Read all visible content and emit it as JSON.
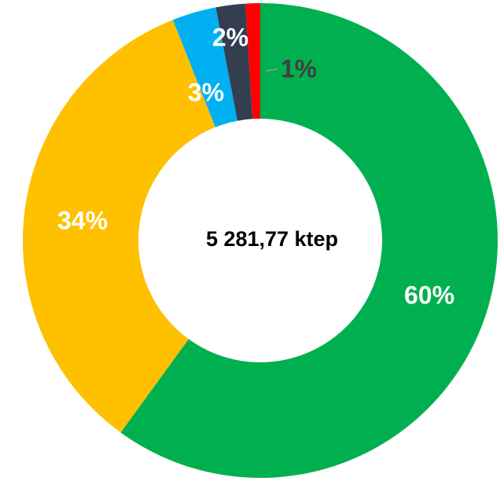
{
  "chart_data": {
    "type": "donut",
    "center_label": "5 281,77 ktep",
    "categories": [
      null,
      null,
      null,
      null,
      null
    ],
    "values": [
      60,
      34,
      3,
      2,
      1
    ],
    "value_labels": [
      "60%",
      "34%",
      "3%",
      "2%",
      "1%"
    ],
    "colors": [
      "#00b050",
      "#ffc000",
      "#00b0f0",
      "#333f50",
      "#ff0000"
    ]
  }
}
